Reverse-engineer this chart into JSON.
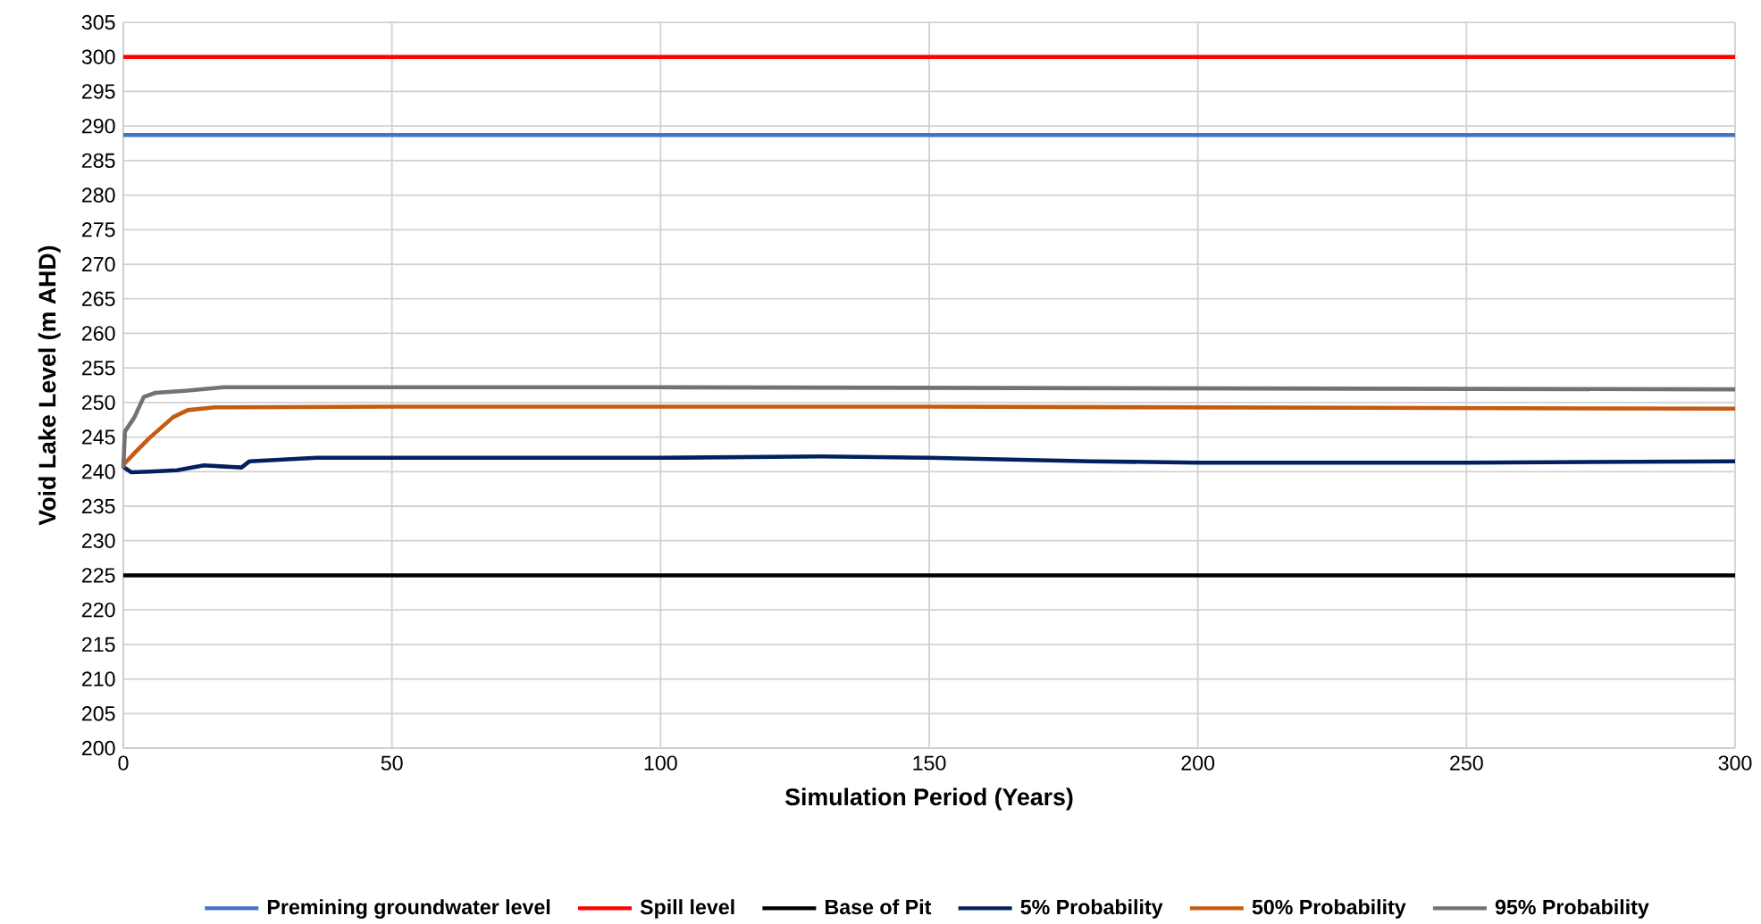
{
  "chart_data": {
    "type": "line",
    "xlabel": "Simulation Period (Years)",
    "ylabel": "Void Lake Level (m AHD)",
    "xlim": [
      0,
      300
    ],
    "xticks": [
      0,
      50,
      100,
      150,
      200,
      250,
      300
    ],
    "ylim": [
      200,
      305
    ],
    "yticks": [
      200,
      205,
      210,
      215,
      220,
      225,
      230,
      235,
      240,
      245,
      250,
      255,
      260,
      265,
      270,
      275,
      280,
      285,
      290,
      295,
      300,
      305
    ],
    "grid": true,
    "legend": "bottom",
    "marker": "none",
    "line_style": "solid",
    "series": [
      {
        "name": "Premining groundwater level",
        "color": "#4472c4",
        "x": [
          0,
          300
        ],
        "values": [
          288.7,
          288.7
        ]
      },
      {
        "name": "Spill level",
        "color": "#ff0000",
        "x": [
          0,
          300
        ],
        "values": [
          300,
          300
        ]
      },
      {
        "name": "Base of Pit",
        "color": "#000000",
        "x": [
          0,
          300
        ],
        "values": [
          225,
          225
        ]
      },
      {
        "name": "5% Probability",
        "color": "#002060",
        "x": [
          0,
          1.5,
          5,
          10,
          15,
          22,
          23.5,
          36,
          100,
          130,
          150,
          180,
          200,
          250,
          300
        ],
        "values": [
          240.7,
          239.9,
          240.0,
          240.2,
          240.9,
          240.6,
          241.5,
          242.0,
          242.0,
          242.2,
          242.0,
          241.5,
          241.3,
          241.3,
          241.5
        ]
      },
      {
        "name": "50% Probability",
        "color": "#c55a11",
        "x": [
          0,
          2.1,
          4.9,
          9.3,
          12,
          17,
          50,
          150,
          300
        ],
        "values": [
          241.0,
          242.7,
          244.9,
          247.9,
          248.9,
          249.3,
          249.4,
          249.4,
          249.1
        ]
      },
      {
        "name": "95% Probability",
        "color": "#767171",
        "x": [
          0,
          0.3,
          2.1,
          3.8,
          6,
          11.5,
          18.7,
          100,
          300
        ],
        "values": [
          240.5,
          245.8,
          247.9,
          250.8,
          251.4,
          251.7,
          252.2,
          252.2,
          251.9
        ]
      }
    ]
  }
}
